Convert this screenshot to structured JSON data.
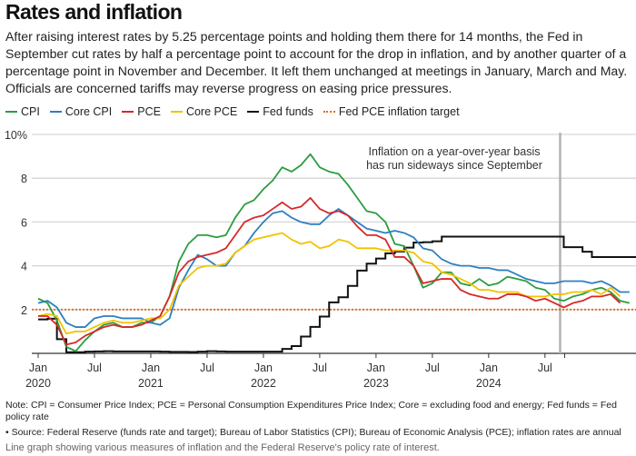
{
  "title": "Rates and inflation",
  "subtitle": "After raising interest rates by 5.25 percentage points and holding them there for 14 months, the Fed in September cut rates by half a percentage point to account for the drop in inflation, and by another quarter of a percentage point in November and December. It left them unchanged at meetings in January, March and May. Officials are concerned tariffs may reverse progress on easing price pressures.",
  "note": "Note: CPI = Consumer Price Index; PCE = Personal Consumption Expenditures Price Index; Core = excluding food and energy; Fed funds = Fed policy rate",
  "source": "• Source: Federal Reserve (funds rate and target); Bureau of Labor Statistics (CPI); Bureau of Economic Analysis (PCE); inflation rates are annual",
  "alt_text": "Line graph showing various measures of inflation and the Federal Reserve's policy rate of interest.",
  "chart_data": {
    "type": "line",
    "x_start": "2020-01",
    "x_frequency": "monthly",
    "ylim": [
      0,
      10
    ],
    "y_ticks": [
      2,
      4,
      6,
      8,
      10
    ],
    "y_tick_labels": [
      "2",
      "4",
      "6",
      "8",
      "10%"
    ],
    "x_tick_labels": [
      {
        "month": "2020-01",
        "label": "Jan",
        "year": "2020"
      },
      {
        "month": "2020-07",
        "label": "Jul",
        "year": ""
      },
      {
        "month": "2021-01",
        "label": "Jan",
        "year": "2021"
      },
      {
        "month": "2021-07",
        "label": "Jul",
        "year": ""
      },
      {
        "month": "2022-01",
        "label": "Jan",
        "year": "2022"
      },
      {
        "month": "2022-07",
        "label": "Jul",
        "year": ""
      },
      {
        "month": "2023-01",
        "label": "Jan",
        "year": "2023"
      },
      {
        "month": "2023-07",
        "label": "Jul",
        "year": ""
      },
      {
        "month": "2024-01",
        "label": "Jan",
        "year": "2024"
      },
      {
        "month": "2024-07",
        "label": "Jul",
        "year": ""
      }
    ],
    "grid": true,
    "legend_placement": "top",
    "annotation": {
      "month": "2024-09",
      "text_lines": [
        "Inflation on a year-over-year basis",
        "has run sideways since September"
      ]
    },
    "target": {
      "name": "Fed PCE inflation target",
      "value": 2,
      "color": "#e06c1c",
      "style": "dotted"
    },
    "series": [
      {
        "name": "CPI",
        "color": "#2a9d3f",
        "step": false,
        "values": [
          2.5,
          2.3,
          1.5,
          0.3,
          0.1,
          0.6,
          1.0,
          1.3,
          1.4,
          1.2,
          1.2,
          1.4,
          1.4,
          1.7,
          2.6,
          4.2,
          5.0,
          5.4,
          5.4,
          5.3,
          5.4,
          6.2,
          6.8,
          7.0,
          7.5,
          7.9,
          8.5,
          8.3,
          8.6,
          9.1,
          8.5,
          8.3,
          8.2,
          7.7,
          7.1,
          6.5,
          6.4,
          6.0,
          5.0,
          4.9,
          4.0,
          3.0,
          3.2,
          3.7,
          3.7,
          3.2,
          3.1,
          3.4,
          3.1,
          3.2,
          3.5,
          3.4,
          3.3,
          3.0,
          2.9,
          2.5,
          2.4,
          2.6,
          2.7,
          2.9,
          3.0,
          2.8,
          2.4,
          2.3
        ]
      },
      {
        "name": "Core CPI",
        "color": "#2f7fc1",
        "step": false,
        "values": [
          2.3,
          2.4,
          2.1,
          1.4,
          1.2,
          1.2,
          1.6,
          1.7,
          1.7,
          1.6,
          1.6,
          1.6,
          1.4,
          1.3,
          1.6,
          3.0,
          3.8,
          4.5,
          4.3,
          4.0,
          4.0,
          4.6,
          4.9,
          5.5,
          6.0,
          6.4,
          6.5,
          6.2,
          6.0,
          5.9,
          5.9,
          6.3,
          6.6,
          6.3,
          6.0,
          5.7,
          5.6,
          5.5,
          5.6,
          5.5,
          5.3,
          4.8,
          4.7,
          4.3,
          4.1,
          4.0,
          4.0,
          3.9,
          3.9,
          3.8,
          3.8,
          3.6,
          3.4,
          3.3,
          3.2,
          3.2,
          3.3,
          3.3,
          3.3,
          3.2,
          3.3,
          3.1,
          2.8,
          2.8
        ]
      },
      {
        "name": "PCE",
        "color": "#d62828",
        "step": false,
        "values": [
          1.7,
          1.7,
          1.3,
          0.4,
          0.5,
          0.8,
          1.0,
          1.2,
          1.3,
          1.2,
          1.2,
          1.3,
          1.5,
          1.7,
          2.6,
          3.7,
          4.2,
          4.4,
          4.5,
          4.6,
          4.8,
          5.4,
          6.0,
          6.2,
          6.3,
          6.6,
          6.9,
          6.6,
          6.7,
          7.1,
          6.6,
          6.4,
          6.5,
          6.3,
          5.8,
          5.4,
          5.4,
          5.2,
          4.4,
          4.4,
          4.0,
          3.2,
          3.3,
          3.4,
          3.4,
          2.9,
          2.7,
          2.6,
          2.5,
          2.5,
          2.7,
          2.7,
          2.6,
          2.4,
          2.5,
          2.3,
          2.1,
          2.3,
          2.4,
          2.6,
          2.6,
          2.7,
          2.3
        ]
      },
      {
        "name": "Core PCE",
        "color": "#f2c200",
        "step": false,
        "values": [
          1.7,
          1.8,
          1.7,
          0.9,
          1.0,
          1.0,
          1.2,
          1.4,
          1.5,
          1.4,
          1.4,
          1.5,
          1.6,
          1.6,
          2.0,
          3.1,
          3.5,
          3.9,
          4.0,
          4.0,
          4.1,
          4.6,
          4.9,
          5.2,
          5.3,
          5.4,
          5.5,
          5.2,
          5.0,
          5.1,
          4.8,
          4.9,
          5.2,
          5.1,
          4.8,
          4.8,
          4.8,
          4.7,
          4.7,
          4.7,
          4.6,
          4.2,
          4.1,
          3.7,
          3.6,
          3.4,
          3.2,
          2.9,
          2.9,
          2.8,
          2.8,
          2.8,
          2.6,
          2.6,
          2.6,
          2.7,
          2.7,
          2.8,
          2.8,
          2.9,
          2.7,
          3.0,
          2.6
        ]
      },
      {
        "name": "Fed funds",
        "color": "#111111",
        "step": true,
        "values": [
          1.55,
          1.58,
          0.65,
          0.05,
          0.05,
          0.08,
          0.09,
          0.1,
          0.09,
          0.09,
          0.09,
          0.09,
          0.09,
          0.08,
          0.07,
          0.07,
          0.06,
          0.08,
          0.1,
          0.09,
          0.08,
          0.08,
          0.08,
          0.08,
          0.08,
          0.08,
          0.2,
          0.33,
          0.77,
          1.21,
          1.68,
          2.33,
          2.56,
          3.08,
          3.78,
          4.1,
          4.33,
          4.57,
          4.65,
          4.83,
          5.06,
          5.08,
          5.12,
          5.33,
          5.33,
          5.33,
          5.33,
          5.33,
          5.33,
          5.33,
          5.33,
          5.33,
          5.33,
          5.33,
          5.33,
          5.33,
          4.85,
          4.85,
          4.64,
          4.4,
          4.4,
          4.4,
          4.4,
          4.4
        ]
      }
    ]
  }
}
